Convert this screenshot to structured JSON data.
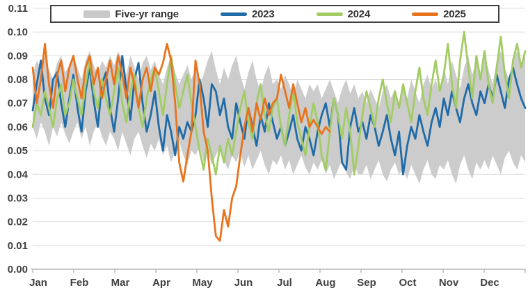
{
  "chart_data": {
    "type": "line",
    "title": "",
    "xlabel": "",
    "ylabel": "",
    "ylim": [
      0,
      0.11
    ],
    "ytick_step": 0.01,
    "ytick_labels": [
      "0.00",
      "0.01",
      "0.02",
      "0.03",
      "0.04",
      "0.05",
      "0.06",
      "0.07",
      "0.08",
      "0.09",
      "0.10",
      "0.11"
    ],
    "months": [
      "Jan",
      "Feb",
      "Mar",
      "Apr",
      "May",
      "Jun",
      "Jul",
      "Aug",
      "Sep",
      "Oct",
      "Nov",
      "Dec"
    ],
    "points_per_year": 122,
    "grid_color": "#dcdcdc",
    "axis_color": "#b5b5b5",
    "text_color": "#404040",
    "legend_position": "top",
    "band": {
      "name": "Five-yr range",
      "color": "#c9c9c9",
      "upper": [
        0.082,
        0.088,
        0.085,
        0.09,
        0.084,
        0.08,
        0.087,
        0.09,
        0.083,
        0.086,
        0.09,
        0.085,
        0.08,
        0.088,
        0.092,
        0.086,
        0.082,
        0.088,
        0.085,
        0.09,
        0.086,
        0.092,
        0.088,
        0.082,
        0.09,
        0.085,
        0.08,
        0.087,
        0.09,
        0.084,
        0.088,
        0.082,
        0.078,
        0.085,
        0.09,
        0.083,
        0.078,
        0.082,
        0.086,
        0.08,
        0.085,
        0.078,
        0.082,
        0.088,
        0.092,
        0.084,
        0.078,
        0.085,
        0.08,
        0.086,
        0.09,
        0.082,
        0.076,
        0.083,
        0.088,
        0.08,
        0.075,
        0.082,
        0.086,
        0.078,
        0.08,
        0.076,
        0.082,
        0.078,
        0.073,
        0.08,
        0.076,
        0.072,
        0.078,
        0.075,
        0.078,
        0.072,
        0.076,
        0.08,
        0.075,
        0.07,
        0.076,
        0.08,
        0.074,
        0.078,
        0.072,
        0.075,
        0.07,
        0.076,
        0.072,
        0.068,
        0.075,
        0.078,
        0.072,
        0.076,
        0.07,
        0.078,
        0.072,
        0.08,
        0.075,
        0.07,
        0.078,
        0.082,
        0.076,
        0.08,
        0.074,
        0.085,
        0.078,
        0.088,
        0.082,
        0.076,
        0.085,
        0.09,
        0.082,
        0.088,
        0.08,
        0.09,
        0.084,
        0.078,
        0.088,
        0.092,
        0.085,
        0.08,
        0.088,
        0.092,
        0.086,
        0.09
      ],
      "lower": [
        0.06,
        0.055,
        0.062,
        0.058,
        0.052,
        0.06,
        0.056,
        0.062,
        0.057,
        0.053,
        0.058,
        0.062,
        0.055,
        0.06,
        0.052,
        0.058,
        0.062,
        0.056,
        0.052,
        0.058,
        0.055,
        0.05,
        0.058,
        0.053,
        0.048,
        0.055,
        0.058,
        0.052,
        0.047,
        0.053,
        0.05,
        0.055,
        0.048,
        0.052,
        0.045,
        0.05,
        0.054,
        0.048,
        0.044,
        0.05,
        0.048,
        0.052,
        0.045,
        0.05,
        0.044,
        0.048,
        0.052,
        0.046,
        0.042,
        0.048,
        0.045,
        0.05,
        0.043,
        0.048,
        0.042,
        0.046,
        0.05,
        0.044,
        0.04,
        0.046,
        0.044,
        0.048,
        0.042,
        0.046,
        0.04,
        0.044,
        0.048,
        0.043,
        0.04,
        0.045,
        0.042,
        0.046,
        0.04,
        0.044,
        0.038,
        0.042,
        0.046,
        0.041,
        0.038,
        0.044,
        0.04,
        0.04,
        0.044,
        0.038,
        0.042,
        0.046,
        0.04,
        0.037,
        0.042,
        0.045,
        0.04,
        0.042,
        0.038,
        0.044,
        0.04,
        0.036,
        0.042,
        0.046,
        0.04,
        0.038,
        0.044,
        0.042,
        0.046,
        0.04,
        0.036,
        0.044,
        0.048,
        0.042,
        0.038,
        0.045,
        0.042,
        0.046,
        0.042,
        0.048,
        0.044,
        0.04,
        0.047,
        0.05,
        0.045,
        0.042,
        0.048,
        0.045
      ]
    },
    "series": [
      {
        "name": "2023",
        "color": "#1f6ba8",
        "values": [
          0.067,
          0.078,
          0.088,
          0.072,
          0.065,
          0.08,
          0.083,
          0.07,
          0.06,
          0.072,
          0.082,
          0.068,
          0.058,
          0.075,
          0.085,
          0.071,
          0.06,
          0.078,
          0.083,
          0.068,
          0.058,
          0.072,
          0.09,
          0.076,
          0.063,
          0.08,
          0.087,
          0.07,
          0.058,
          0.065,
          0.075,
          0.06,
          0.05,
          0.065,
          0.058,
          0.048,
          0.06,
          0.055,
          0.062,
          0.058,
          0.065,
          0.08,
          0.072,
          0.06,
          0.078,
          0.075,
          0.065,
          0.072,
          0.06,
          0.055,
          0.07,
          0.062,
          0.055,
          0.068,
          0.06,
          0.052,
          0.065,
          0.058,
          0.07,
          0.062,
          0.055,
          0.06,
          0.052,
          0.058,
          0.065,
          0.055,
          0.05,
          0.06,
          0.055,
          0.048,
          0.058,
          0.065,
          0.07,
          0.06,
          0.072,
          0.065,
          0.045,
          0.042,
          0.06,
          0.068,
          0.058,
          0.062,
          0.055,
          0.065,
          0.06,
          0.052,
          0.058,
          0.065,
          0.055,
          0.048,
          0.058,
          0.04,
          0.052,
          0.06,
          0.055,
          0.065,
          0.058,
          0.052,
          0.062,
          0.068,
          0.06,
          0.072,
          0.065,
          0.075,
          0.068,
          0.062,
          0.072,
          0.078,
          0.07,
          0.065,
          0.075,
          0.07,
          0.078,
          0.072,
          0.082,
          0.075,
          0.068,
          0.08,
          0.085,
          0.078,
          0.072,
          0.068
        ]
      },
      {
        "name": "2024",
        "color": "#a2cc63",
        "values": [
          0.06,
          0.07,
          0.065,
          0.075,
          0.068,
          0.06,
          0.072,
          0.078,
          0.065,
          0.07,
          0.08,
          0.072,
          0.065,
          0.078,
          0.088,
          0.075,
          0.068,
          0.08,
          0.072,
          0.065,
          0.075,
          0.085,
          0.07,
          0.062,
          0.075,
          0.082,
          0.068,
          0.06,
          0.072,
          0.08,
          0.085,
          0.075,
          0.065,
          0.078,
          0.09,
          0.078,
          0.068,
          0.075,
          0.082,
          0.07,
          0.06,
          0.05,
          0.042,
          0.055,
          0.048,
          0.04,
          0.052,
          0.045,
          0.055,
          0.048,
          0.058,
          0.068,
          0.075,
          0.062,
          0.055,
          0.07,
          0.078,
          0.065,
          0.058,
          0.068,
          0.072,
          0.06,
          0.052,
          0.065,
          0.075,
          0.062,
          0.055,
          0.048,
          0.06,
          0.07,
          0.062,
          0.048,
          0.042,
          0.058,
          0.072,
          0.065,
          0.055,
          0.068,
          0.058,
          0.04,
          0.052,
          0.065,
          0.075,
          0.068,
          0.06,
          0.072,
          0.08,
          0.07,
          0.062,
          0.075,
          0.068,
          0.078,
          0.07,
          0.062,
          0.075,
          0.085,
          0.072,
          0.065,
          0.078,
          0.088,
          0.075,
          0.082,
          0.095,
          0.078,
          0.068,
          0.088,
          0.1,
          0.085,
          0.072,
          0.09,
          0.08,
          0.092,
          0.078,
          0.07,
          0.085,
          0.098,
          0.082,
          0.072,
          0.088,
          0.095,
          0.085,
          0.092
        ]
      },
      {
        "name": "2025",
        "color": "#e8731e",
        "values": [
          0.085,
          0.07,
          0.08,
          0.095,
          0.078,
          0.068,
          0.082,
          0.088,
          0.075,
          0.085,
          0.09,
          0.08,
          0.072,
          0.085,
          0.09,
          0.078,
          0.085,
          0.072,
          0.08,
          0.088,
          0.078,
          0.09,
          0.082,
          0.072,
          0.085,
          0.078,
          0.068,
          0.08,
          0.085,
          0.075,
          0.085,
          0.082,
          0.087,
          0.095,
          0.088,
          0.07,
          0.045,
          0.037,
          0.048,
          0.058,
          0.088,
          0.078,
          0.058,
          0.05,
          0.03,
          0.014,
          0.012,
          0.025,
          0.018,
          0.03,
          0.035,
          0.048,
          0.06,
          0.068,
          0.058,
          0.07,
          0.063,
          0.072,
          0.065,
          0.07,
          0.072,
          0.082,
          0.075,
          0.068,
          0.078,
          0.07,
          0.062,
          0.068,
          0.06,
          0.063,
          0.06,
          0.057,
          0.06,
          0.058
        ]
      }
    ]
  }
}
